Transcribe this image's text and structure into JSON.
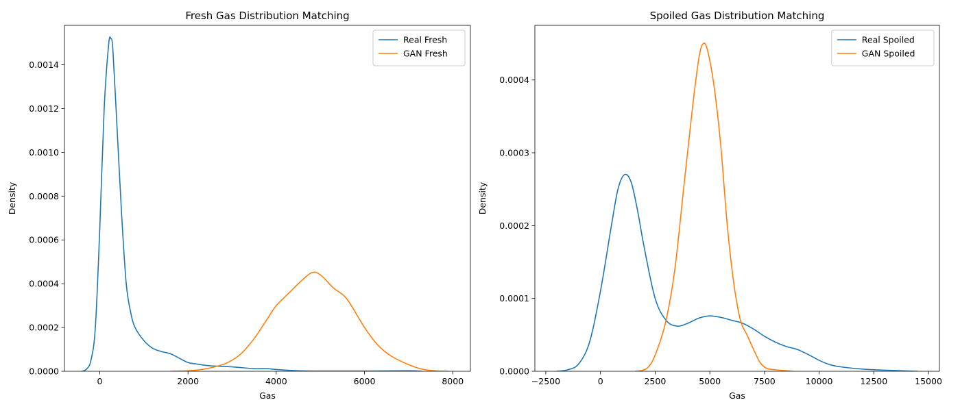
{
  "chart_data": [
    {
      "type": "line",
      "title": "Fresh Gas Distribution Matching",
      "xlabel": "Gas",
      "ylabel": "Density",
      "xlim": [
        -800,
        8400
      ],
      "ylim": [
        0,
        0.00158
      ],
      "xticks": [
        0,
        2000,
        4000,
        6000,
        8000
      ],
      "xtick_labels": [
        "0",
        "2000",
        "4000",
        "6000",
        "8000"
      ],
      "yticks": [
        0,
        0.0002,
        0.0004,
        0.0006,
        0.0008,
        0.001,
        0.0012,
        0.0014
      ],
      "ytick_labels": [
        "0.0000",
        "0.0002",
        "0.0004",
        "0.0006",
        "0.0008",
        "0.0010",
        "0.0012",
        "0.0014"
      ],
      "legend_position": "top-right",
      "series": [
        {
          "name": "Real Fresh",
          "color": "#1f77b4",
          "x": [
            -400,
            -300,
            -200,
            -100,
            0,
            100,
            200,
            250,
            300,
            400,
            500,
            600,
            700,
            800,
            1000,
            1200,
            1400,
            1600,
            1800,
            2000,
            2200,
            2500,
            3000,
            3500,
            3800,
            4000,
            4500,
            5000,
            6000,
            7000,
            7300
          ],
          "y": [
            0,
            1e-05,
            5e-05,
            0.0002,
            0.00065,
            0.0012,
            0.00149,
            0.00152,
            0.00146,
            0.00108,
            0.0007,
            0.0004,
            0.00027,
            0.0002,
            0.00014,
            0.000105,
            9e-05,
            8e-05,
            6e-05,
            4e-05,
            3.3e-05,
            2.5e-05,
            2e-05,
            1.2e-05,
            1.2e-05,
            8e-06,
            2e-06,
            1e-06,
            1e-06,
            2e-06,
            0
          ]
        },
        {
          "name": "GAN Fresh",
          "color": "#ff7f0e",
          "x": [
            1600,
            2000,
            2300,
            2600,
            2900,
            3200,
            3500,
            3800,
            4000,
            4300,
            4500,
            4800,
            5000,
            5300,
            5600,
            6000,
            6300,
            6600,
            7000,
            7300,
            7600,
            7900
          ],
          "y": [
            0,
            2e-06,
            8e-06,
            2e-05,
            4e-05,
            8e-05,
            0.00015,
            0.00024,
            0.0003,
            0.00036,
            0.0004,
            0.00045,
            0.00044,
            0.00038,
            0.00033,
            0.0002,
            0.00012,
            7e-05,
            3e-05,
            1e-05,
            2e-06,
            0
          ]
        }
      ]
    },
    {
      "type": "line",
      "title": "Spoiled Gas Distribution Matching",
      "xlabel": "Gas",
      "ylabel": "Density",
      "xlim": [
        -3000,
        15500
      ],
      "ylim": [
        0,
        0.000475
      ],
      "xticks": [
        -2500,
        0,
        2500,
        5000,
        7500,
        10000,
        12500,
        15000
      ],
      "xtick_labels": [
        "−2500",
        "0",
        "2500",
        "5000",
        "7500",
        "10000",
        "12500",
        "15000"
      ],
      "yticks": [
        0,
        0.0001,
        0.0002,
        0.0003,
        0.0004
      ],
      "ytick_labels": [
        "0.0000",
        "0.0001",
        "0.0002",
        "0.0003",
        "0.0004"
      ],
      "legend_position": "top-right",
      "series": [
        {
          "name": "Real Spoiled",
          "color": "#1f77b4",
          "x": [
            -2000,
            -1500,
            -1000,
            -500,
            0,
            500,
            800,
            1100,
            1400,
            1700,
            2000,
            2500,
            3000,
            3500,
            4000,
            4500,
            5000,
            5500,
            6000,
            6500,
            7000,
            7500,
            8000,
            8500,
            9000,
            9500,
            10000,
            10500,
            11000,
            12000,
            13000,
            14500
          ],
          "y": [
            0,
            2e-06,
            1e-05,
            4e-05,
            0.00011,
            0.0002,
            0.00025,
            0.00027,
            0.00026,
            0.00022,
            0.00017,
            0.0001,
            7e-05,
            6.2e-05,
            6.6e-05,
            7.3e-05,
            7.6e-05,
            7.4e-05,
            7e-05,
            6.6e-05,
            5.8e-05,
            4.8e-05,
            4e-05,
            3.4e-05,
            3e-05,
            2.3e-05,
            1.5e-05,
            9e-06,
            6e-06,
            3e-06,
            1.5e-06,
            0
          ]
        },
        {
          "name": "GAN Spoiled",
          "color": "#ff7f0e",
          "x": [
            1600,
            2000,
            2300,
            2600,
            3000,
            3400,
            3800,
            4200,
            4500,
            4700,
            4900,
            5200,
            5500,
            5800,
            6100,
            6400,
            6700,
            7000,
            7300,
            7600,
            8000,
            8800
          ],
          "y": [
            0,
            2e-06,
            1e-05,
            3e-05,
            7e-05,
            0.00014,
            0.00025,
            0.00036,
            0.00043,
            0.00045,
            0.00044,
            0.00039,
            0.00031,
            0.0002,
            0.00012,
            7e-05,
            5e-05,
            3e-05,
            1.2e-05,
            4e-06,
            2e-06,
            0
          ]
        }
      ]
    }
  ]
}
